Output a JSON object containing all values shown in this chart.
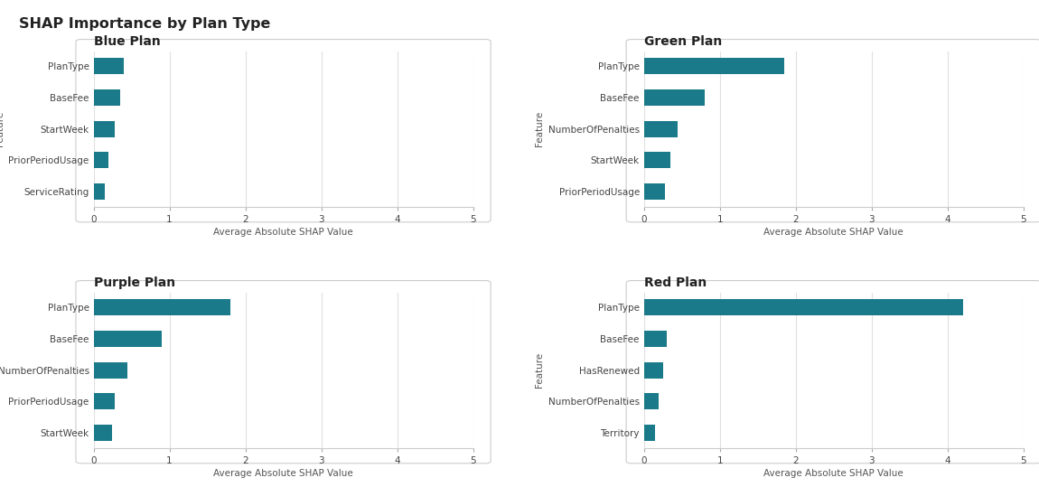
{
  "title": "SHAP Importance by Plan Type",
  "bar_color": "#1a7a8a",
  "outer_bg": "#f0f0f0",
  "panel_bg": "#ffffff",
  "border_color": "#d0d0d0",
  "xlabel": "Average Absolute SHAP Value",
  "ylabel": "Feature",
  "xlim": [
    0,
    5
  ],
  "xticks": [
    0,
    1,
    2,
    3,
    4,
    5
  ],
  "plans": [
    {
      "title": "Blue Plan",
      "features": [
        "PlanType",
        "BaseFee",
        "StartWeek",
        "PriorPeriodUsage",
        "ServiceRating"
      ],
      "values": [
        0.4,
        0.35,
        0.28,
        0.2,
        0.15
      ]
    },
    {
      "title": "Green Plan",
      "features": [
        "PlanType",
        "BaseFee",
        "NumberOfPenalties",
        "StartWeek",
        "PriorPeriodUsage"
      ],
      "values": [
        1.85,
        0.8,
        0.45,
        0.35,
        0.28
      ]
    },
    {
      "title": "Purple Plan",
      "features": [
        "PlanType",
        "BaseFee",
        "NumberOfPenalties",
        "PriorPeriodUsage",
        "StartWeek"
      ],
      "values": [
        1.8,
        0.9,
        0.45,
        0.28,
        0.24
      ]
    },
    {
      "title": "Red Plan",
      "features": [
        "PlanType",
        "BaseFee",
        "HasRenewed",
        "NumberOfPenalties",
        "Territory"
      ],
      "values": [
        4.2,
        0.3,
        0.25,
        0.2,
        0.15
      ]
    }
  ]
}
